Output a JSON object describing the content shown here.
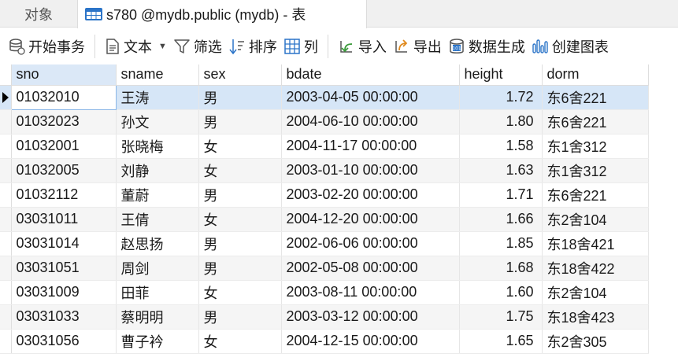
{
  "tabs": {
    "objects_label": "对象",
    "table_tab_label": "s780 @mydb.public (mydb) - 表"
  },
  "toolbar": {
    "begin_transaction": "开始事务",
    "text": "文本",
    "filter": "筛选",
    "sort": "排序",
    "columns": "列",
    "import": "导入",
    "export": "导出",
    "data_generation": "数据生成",
    "create_chart": "创建图表"
  },
  "grid": {
    "columns": [
      "sno",
      "sname",
      "sex",
      "bdate",
      "height",
      "dorm"
    ],
    "rows": [
      [
        "01032010",
        "王涛",
        "男",
        "2003-04-05 00:00:00",
        "1.72",
        "东6舍221"
      ],
      [
        "01032023",
        "孙文",
        "男",
        "2004-06-10 00:00:00",
        "1.80",
        "东6舍221"
      ],
      [
        "01032001",
        "张晓梅",
        "女",
        "2004-11-17 00:00:00",
        "1.58",
        "东1舍312"
      ],
      [
        "01032005",
        "刘静",
        "女",
        "2003-01-10 00:00:00",
        "1.63",
        "东1舍312"
      ],
      [
        "01032112",
        "董蔚",
        "男",
        "2003-02-20 00:00:00",
        "1.71",
        "东6舍221"
      ],
      [
        "03031011",
        "王倩",
        "女",
        "2004-12-20 00:00:00",
        "1.66",
        "东2舍104"
      ],
      [
        "03031014",
        "赵思扬",
        "男",
        "2002-06-06 00:00:00",
        "1.85",
        "东18舍421"
      ],
      [
        "03031051",
        "周剑",
        "男",
        "2002-05-08 00:00:00",
        "1.68",
        "东18舍422"
      ],
      [
        "03031009",
        "田菲",
        "女",
        "2003-08-11 00:00:00",
        "1.60",
        "东2舍104"
      ],
      [
        "03031033",
        "蔡明明",
        "男",
        "2003-03-12 00:00:00",
        "1.75",
        "东18舍423"
      ],
      [
        "03031056",
        "曹子衿",
        "女",
        "2004-12-15 00:00:00",
        "1.65",
        "东2舍305"
      ]
    ],
    "selected_row": 0
  },
  "colors": {
    "selected_row": "#d6e6f7",
    "header_highlight": "#dbe8f7",
    "icon_blue": "#2b74c8"
  }
}
